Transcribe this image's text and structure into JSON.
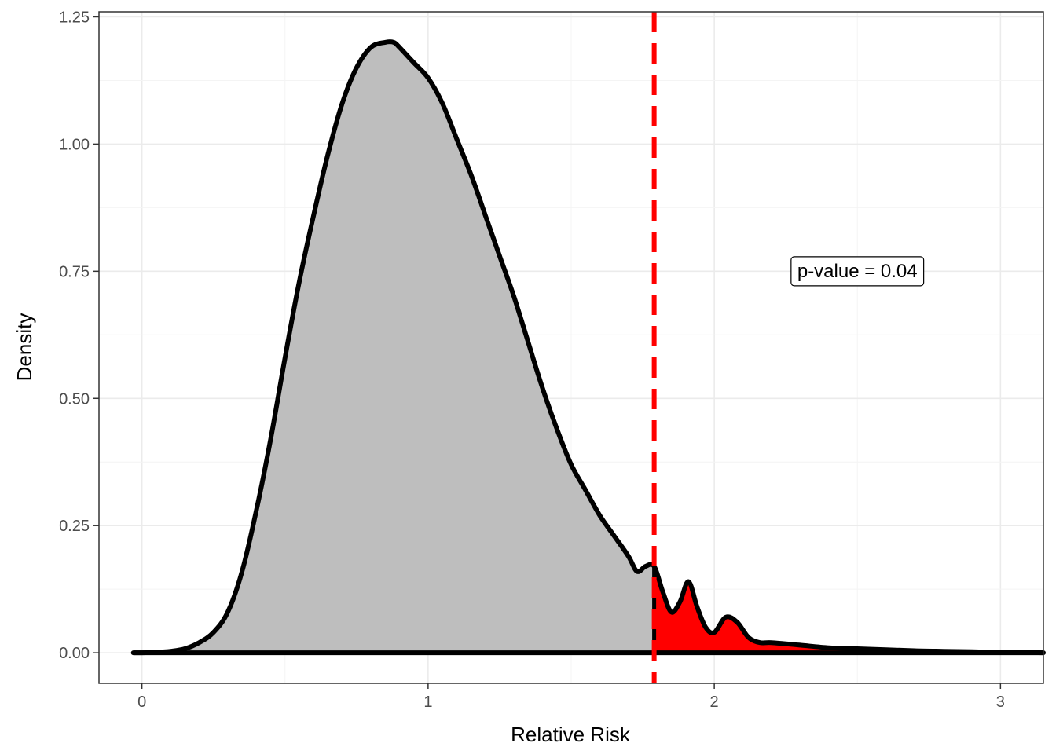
{
  "chart_data": {
    "type": "area",
    "xlabel": "Relative Risk",
    "ylabel": "Density",
    "xlim": [
      -0.15,
      3.15
    ],
    "ylim": [
      -0.06,
      1.26
    ],
    "x_ticks": [
      0,
      1,
      2,
      3
    ],
    "x_tick_labels": [
      "0",
      "1",
      "2",
      "3"
    ],
    "y_ticks": [
      0,
      0.25,
      0.5,
      0.75,
      1.0,
      1.25
    ],
    "y_tick_labels": [
      "0.00",
      "0.25",
      "0.50",
      "0.75",
      "1.00",
      "1.25"
    ],
    "grid": true,
    "observed_value": 1.79,
    "annotation": {
      "text": "p-value = 0.04",
      "x": 2.5,
      "y": 0.75
    },
    "colors": {
      "density_fill": "#bebebe",
      "tail_fill": "#ff0000",
      "outline": "#000000",
      "reference_line": "#ff0000"
    },
    "density": {
      "x": [
        -0.03,
        0.0,
        0.05,
        0.1,
        0.15,
        0.2,
        0.25,
        0.3,
        0.35,
        0.4,
        0.45,
        0.5,
        0.55,
        0.6,
        0.65,
        0.7,
        0.75,
        0.8,
        0.85,
        0.88,
        0.9,
        0.95,
        1.0,
        1.05,
        1.1,
        1.15,
        1.2,
        1.25,
        1.3,
        1.35,
        1.4,
        1.45,
        1.5,
        1.55,
        1.6,
        1.65,
        1.7,
        1.73,
        1.76,
        1.79,
        1.82,
        1.85,
        1.88,
        1.91,
        1.94,
        1.97,
        2.0,
        2.04,
        2.08,
        2.12,
        2.16,
        2.2,
        2.3,
        2.4,
        2.5,
        2.6,
        2.7,
        2.8,
        2.9,
        3.0,
        3.1,
        3.15
      ],
      "y": [
        0.0,
        0.0,
        0.001,
        0.003,
        0.008,
        0.02,
        0.04,
        0.08,
        0.16,
        0.28,
        0.42,
        0.58,
        0.73,
        0.86,
        0.98,
        1.08,
        1.15,
        1.19,
        1.2,
        1.2,
        1.19,
        1.16,
        1.13,
        1.08,
        1.01,
        0.94,
        0.86,
        0.78,
        0.7,
        0.61,
        0.52,
        0.44,
        0.37,
        0.32,
        0.27,
        0.23,
        0.19,
        0.16,
        0.17,
        0.17,
        0.12,
        0.08,
        0.1,
        0.14,
        0.09,
        0.05,
        0.04,
        0.07,
        0.06,
        0.03,
        0.02,
        0.02,
        0.015,
        0.01,
        0.008,
        0.006,
        0.004,
        0.003,
        0.002,
        0.001,
        0.0005,
        0.0
      ]
    }
  }
}
